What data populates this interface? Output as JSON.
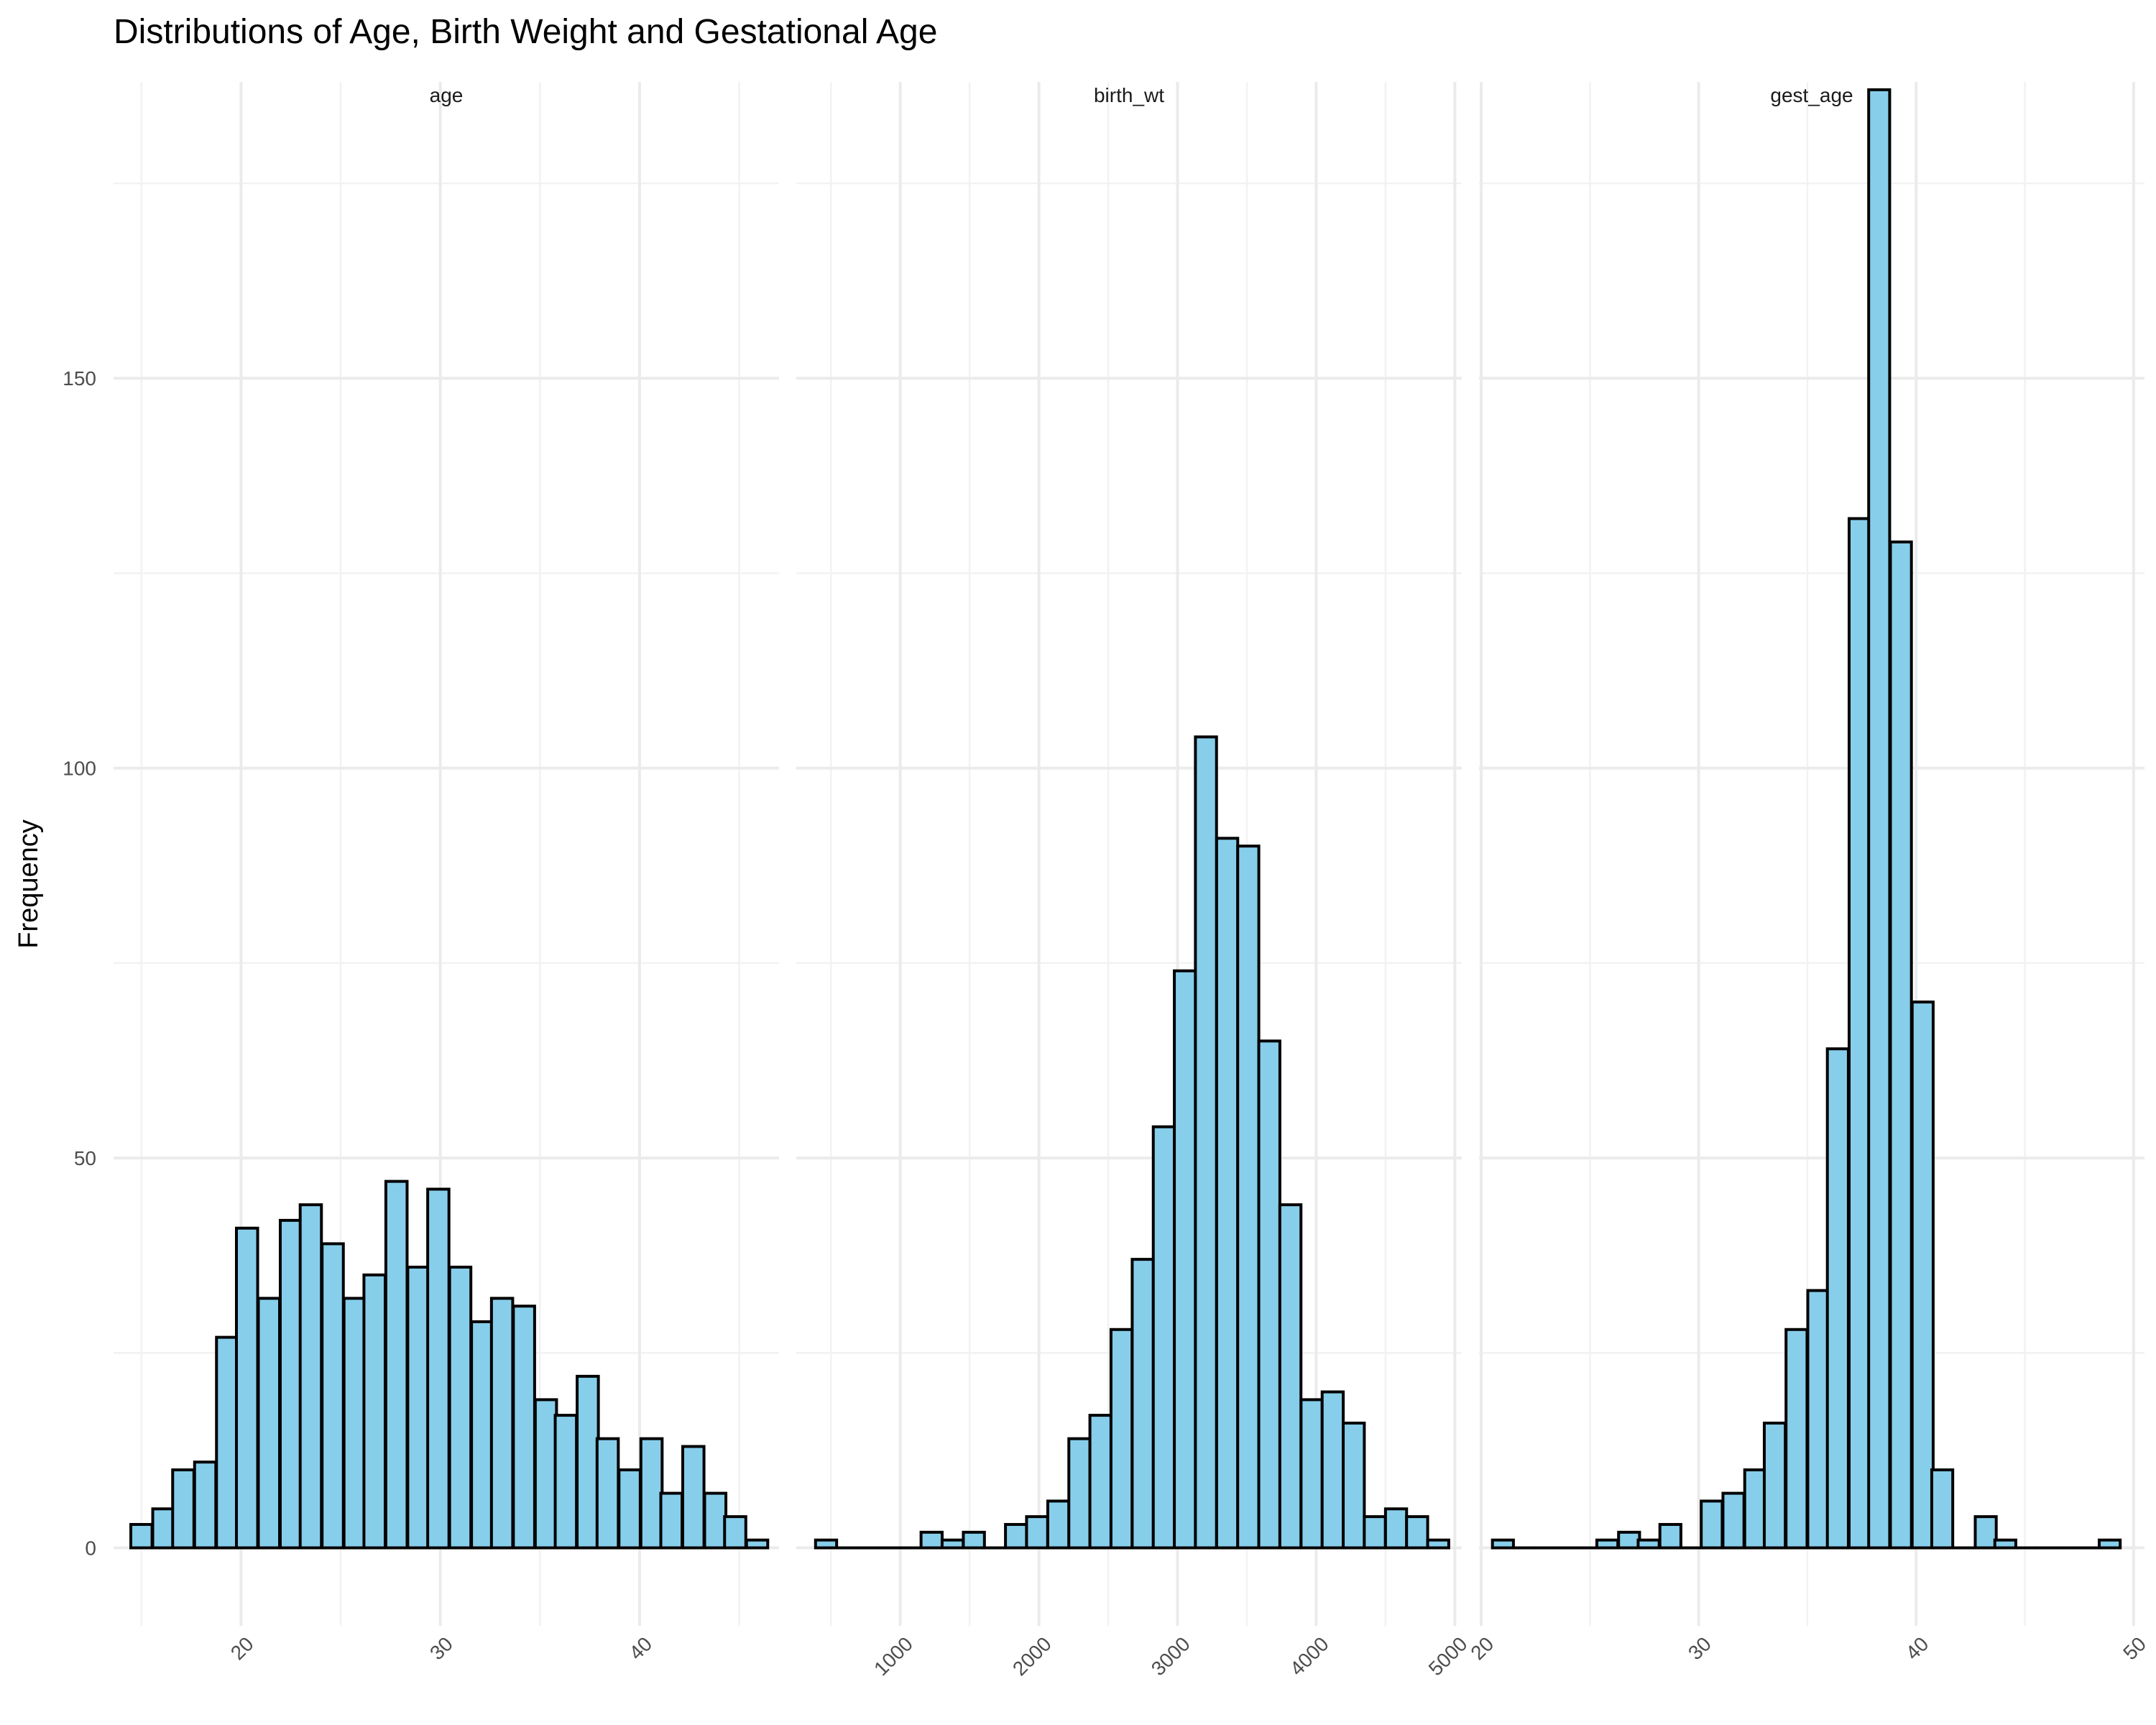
{
  "title": "Distributions of Age, Birth Weight and Gestational Age",
  "ylabel": "Frequency",
  "bar_fill": "#87CEEB",
  "bar_stroke": "#000000",
  "chart_data": [
    {
      "type": "bar",
      "facet": "age",
      "binwidth": 1.066,
      "ylim": [
        -10,
        188
      ],
      "xlim": [
        13.6,
        47.0
      ],
      "yticks": [
        0,
        50,
        100,
        150
      ],
      "xticks": [
        20,
        30,
        40
      ],
      "bins": [
        {
          "x": 15.0,
          "count": 3
        },
        {
          "x": 16.1,
          "count": 5
        },
        {
          "x": 17.1,
          "count": 10
        },
        {
          "x": 18.2,
          "count": 11
        },
        {
          "x": 19.3,
          "count": 27
        },
        {
          "x": 20.3,
          "count": 41
        },
        {
          "x": 21.4,
          "count": 32
        },
        {
          "x": 22.5,
          "count": 42
        },
        {
          "x": 23.5,
          "count": 44
        },
        {
          "x": 24.6,
          "count": 39
        },
        {
          "x": 25.7,
          "count": 32
        },
        {
          "x": 26.7,
          "count": 35
        },
        {
          "x": 27.8,
          "count": 47
        },
        {
          "x": 28.9,
          "count": 36
        },
        {
          "x": 29.9,
          "count": 46
        },
        {
          "x": 31.0,
          "count": 36
        },
        {
          "x": 32.1,
          "count": 29
        },
        {
          "x": 33.1,
          "count": 32
        },
        {
          "x": 34.2,
          "count": 31
        },
        {
          "x": 35.3,
          "count": 19
        },
        {
          "x": 36.3,
          "count": 17
        },
        {
          "x": 37.4,
          "count": 22
        },
        {
          "x": 38.4,
          "count": 14
        },
        {
          "x": 39.5,
          "count": 10
        },
        {
          "x": 40.6,
          "count": 14
        },
        {
          "x": 41.6,
          "count": 7
        },
        {
          "x": 42.7,
          "count": 13
        },
        {
          "x": 43.8,
          "count": 7
        },
        {
          "x": 44.8,
          "count": 4
        },
        {
          "x": 45.9,
          "count": 1
        }
      ]
    },
    {
      "type": "bar",
      "facet": "birth_wt",
      "binwidth": 152.2,
      "ylim": [
        -10,
        188
      ],
      "xlim": [
        250,
        5050
      ],
      "yticks": [
        0,
        50,
        100,
        150
      ],
      "xticks": [
        1000,
        2000,
        3000,
        4000,
        5000
      ],
      "bins": [
        {
          "x": 465,
          "count": 1
        },
        {
          "x": 617,
          "count": 0
        },
        {
          "x": 769,
          "count": 0
        },
        {
          "x": 922,
          "count": 0
        },
        {
          "x": 1074,
          "count": 0
        },
        {
          "x": 1226,
          "count": 2
        },
        {
          "x": 1378,
          "count": 1
        },
        {
          "x": 1531,
          "count": 2
        },
        {
          "x": 1683,
          "count": 0
        },
        {
          "x": 1835,
          "count": 3
        },
        {
          "x": 1987,
          "count": 4
        },
        {
          "x": 2140,
          "count": 6
        },
        {
          "x": 2292,
          "count": 14
        },
        {
          "x": 2444,
          "count": 17
        },
        {
          "x": 2596,
          "count": 28
        },
        {
          "x": 2749,
          "count": 37
        },
        {
          "x": 2901,
          "count": 54
        },
        {
          "x": 3053,
          "count": 74
        },
        {
          "x": 3205,
          "count": 104
        },
        {
          "x": 3358,
          "count": 91
        },
        {
          "x": 3510,
          "count": 90
        },
        {
          "x": 3662,
          "count": 65
        },
        {
          "x": 3814,
          "count": 44
        },
        {
          "x": 3967,
          "count": 19
        },
        {
          "x": 4119,
          "count": 20
        },
        {
          "x": 4271,
          "count": 16
        },
        {
          "x": 4423,
          "count": 4
        },
        {
          "x": 4576,
          "count": 5
        },
        {
          "x": 4728,
          "count": 4
        },
        {
          "x": 4880,
          "count": 1
        }
      ]
    },
    {
      "type": "bar",
      "facet": "gest_age",
      "binwidth": 0.9654,
      "ylim": [
        -10,
        188
      ],
      "xlim": [
        19.9,
        50.5
      ],
      "yticks": [
        0,
        50,
        100,
        150
      ],
      "xticks": [
        20,
        30,
        40,
        50
      ],
      "bins": [
        {
          "x": 21.0,
          "count": 1
        },
        {
          "x": 22.0,
          "count": 0
        },
        {
          "x": 22.9,
          "count": 0
        },
        {
          "x": 23.9,
          "count": 0
        },
        {
          "x": 24.9,
          "count": 0
        },
        {
          "x": 25.8,
          "count": 1
        },
        {
          "x": 26.8,
          "count": 2
        },
        {
          "x": 27.7,
          "count": 1
        },
        {
          "x": 28.7,
          "count": 3
        },
        {
          "x": 29.7,
          "count": 0
        },
        {
          "x": 30.6,
          "count": 6
        },
        {
          "x": 31.6,
          "count": 7
        },
        {
          "x": 32.6,
          "count": 10
        },
        {
          "x": 33.5,
          "count": 16
        },
        {
          "x": 34.5,
          "count": 28
        },
        {
          "x": 35.5,
          "count": 33
        },
        {
          "x": 36.4,
          "count": 64
        },
        {
          "x": 37.4,
          "count": 132
        },
        {
          "x": 38.3,
          "count": 187
        },
        {
          "x": 39.3,
          "count": 129
        },
        {
          "x": 40.3,
          "count": 70
        },
        {
          "x": 41.2,
          "count": 10
        },
        {
          "x": 42.2,
          "count": 0
        },
        {
          "x": 43.2,
          "count": 4
        },
        {
          "x": 44.1,
          "count": 1
        },
        {
          "x": 45.1,
          "count": 0
        },
        {
          "x": 46.0,
          "count": 0
        },
        {
          "x": 47.0,
          "count": 0
        },
        {
          "x": 48.0,
          "count": 0
        },
        {
          "x": 48.9,
          "count": 1
        }
      ]
    }
  ]
}
